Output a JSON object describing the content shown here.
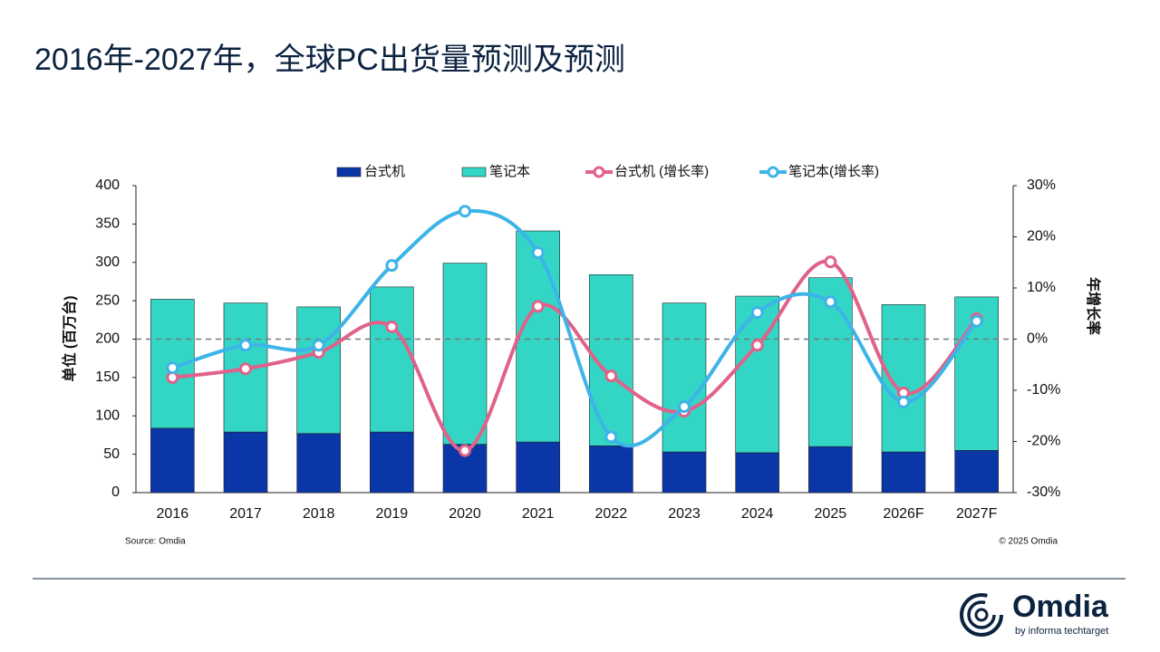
{
  "chart_data": {
    "type": "combo",
    "title": "2016年-2027年，全球PC出货量预测及预测",
    "categories": [
      "2016",
      "2017",
      "2018",
      "2019",
      "2020",
      "2021",
      "2022",
      "2023",
      "2024",
      "2025",
      "2026F",
      "2027F"
    ],
    "series": [
      {
        "name": "台式机",
        "type": "bar",
        "color": "#0a36a8",
        "values": [
          84,
          79,
          77,
          79,
          63,
          66,
          61,
          53,
          52,
          60,
          53,
          55
        ]
      },
      {
        "name": "笔记本",
        "type": "bar",
        "color": "#33d6c5",
        "values": [
          168,
          168,
          165,
          189,
          236,
          275,
          223,
          194,
          204,
          220,
          192,
          200
        ]
      },
      {
        "name": "台式机 (增长率)",
        "type": "line",
        "axis": "y2",
        "color": "#e0628a",
        "values": [
          -7.5,
          -5.8,
          -2.6,
          2.4,
          -21.8,
          6.4,
          -7.2,
          -14.1,
          -1.2,
          15.1,
          -10.5,
          4.0
        ]
      },
      {
        "name": "笔记本(增长率)",
        "type": "line",
        "axis": "y2",
        "color": "#3db4e8",
        "values": [
          -5.6,
          -1.2,
          -1.2,
          14.4,
          25.0,
          16.9,
          -19.1,
          -13.2,
          5.2,
          7.3,
          -12.3,
          3.5
        ]
      }
    ],
    "stacked": true,
    "ylabel": "单位 (百万台)",
    "y2label": "年增长率",
    "ylim": [
      0,
      400
    ],
    "yticks": [
      0,
      50,
      100,
      150,
      200,
      250,
      300,
      350,
      400
    ],
    "y2lim": [
      -30,
      30
    ],
    "y2ticks": [
      {
        "value": -30,
        "label": "-30%"
      },
      {
        "value": -20,
        "label": "-20%"
      },
      {
        "value": -10,
        "label": "-10%"
      },
      {
        "value": 0,
        "label": "0%"
      },
      {
        "value": 10,
        "label": "10%"
      },
      {
        "value": 20,
        "label": "20%"
      },
      {
        "value": 30,
        "label": "30%"
      }
    ],
    "source": "Source: Omdia",
    "copyright": "© 2025 Omdia"
  },
  "logo": {
    "name": "Omdia",
    "tagline": "by informa techtarget"
  }
}
